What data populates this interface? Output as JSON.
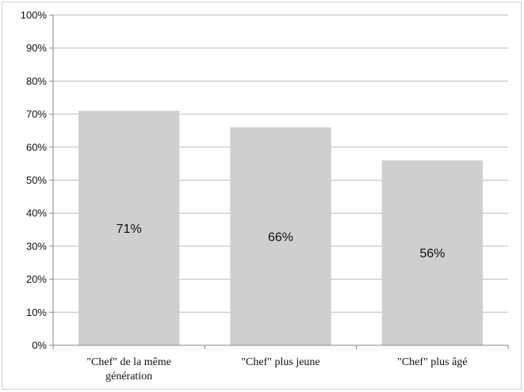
{
  "chart_data": {
    "type": "bar",
    "title": "",
    "xlabel": "",
    "ylabel": "",
    "categories": [
      [
        "\"Chef\" de la même",
        "génération"
      ],
      [
        "\"Chef\" plus jeune"
      ],
      [
        "\"Chef\" plus âgé"
      ]
    ],
    "values": [
      71,
      66,
      56
    ],
    "data_labels": [
      "71%",
      "66%",
      "56%"
    ],
    "ylim": [
      0,
      100
    ],
    "yticks": [
      0,
      10,
      20,
      30,
      40,
      50,
      60,
      70,
      80,
      90,
      100
    ],
    "ytick_labels": [
      "0%",
      "10%",
      "20%",
      "30%",
      "40%",
      "50%",
      "60%",
      "70%",
      "80%",
      "90%",
      "100%"
    ],
    "grid": true,
    "legend": "none",
    "colors": {
      "bar": "#d0cfcf",
      "grid": "#bdbdbd",
      "axis": "#8a8a8a"
    }
  }
}
